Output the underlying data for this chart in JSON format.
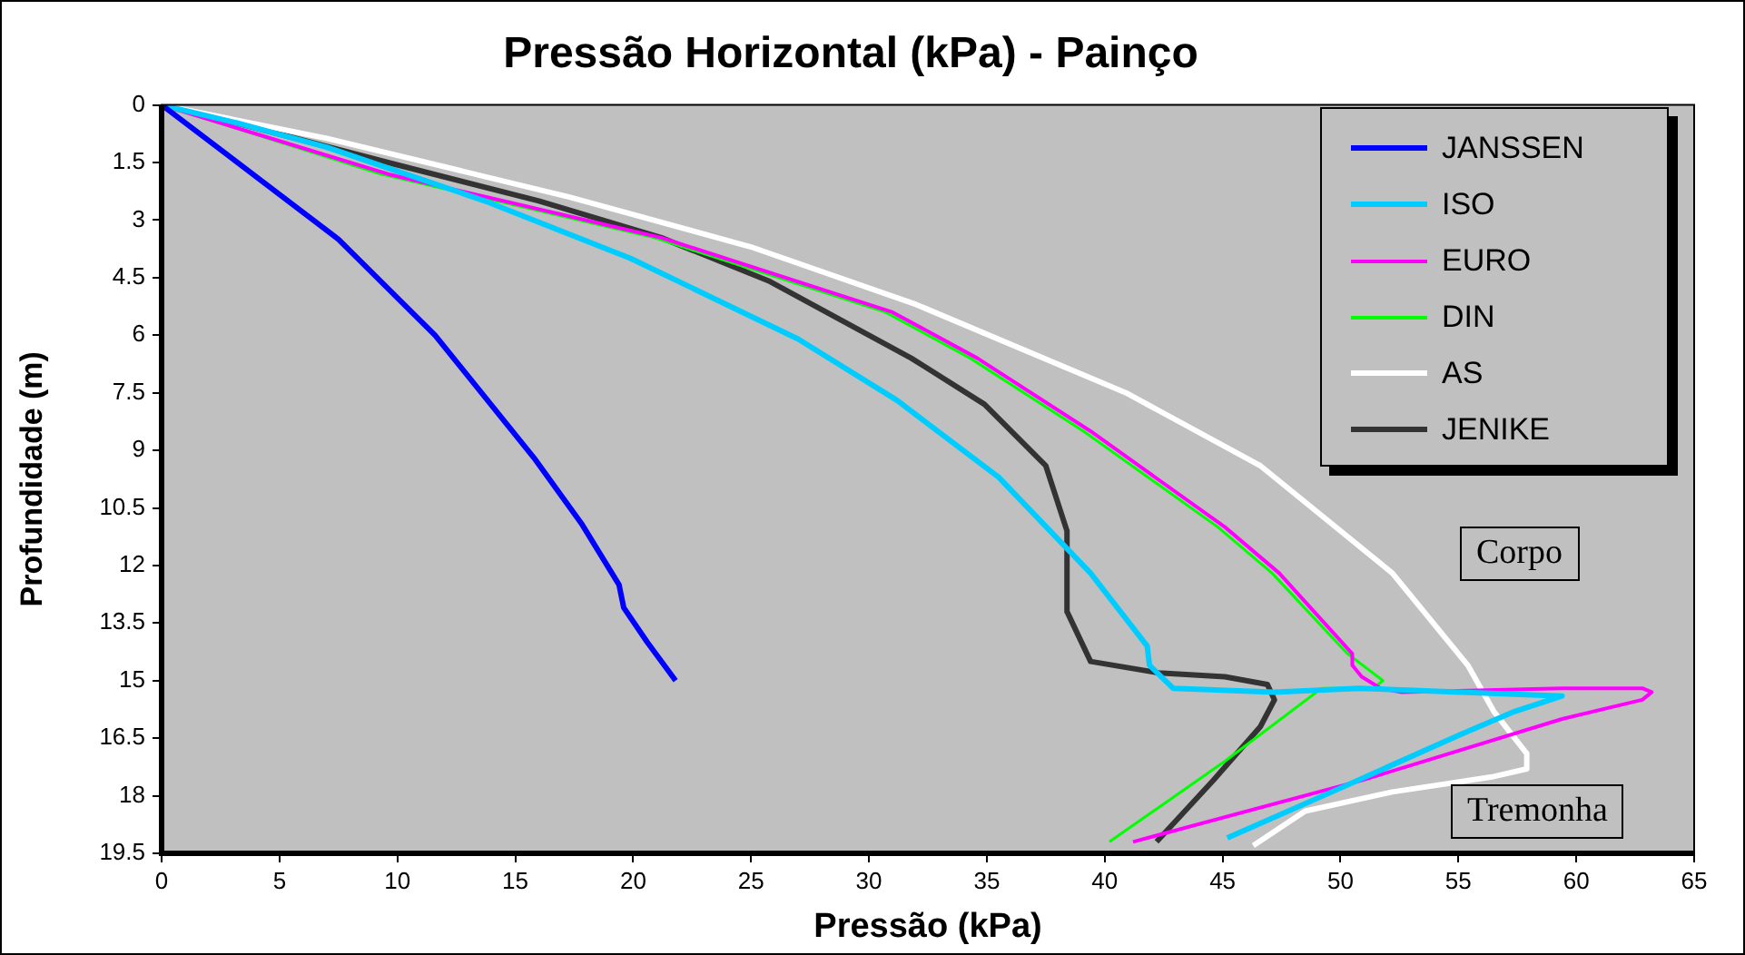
{
  "chart_data": {
    "type": "line",
    "title": "Pressão Horizontal (kPa) - Painço",
    "xlabel": "Pressão (kPa)",
    "ylabel": "Profundidade (m)",
    "xlim": [
      0,
      65
    ],
    "xticks": [
      0,
      5,
      10,
      15,
      20,
      25,
      30,
      35,
      40,
      45,
      50,
      55,
      60,
      65
    ],
    "ylim": [
      19.5,
      0
    ],
    "yticks": [
      0,
      1.5,
      3,
      4.5,
      6,
      7.5,
      9,
      10.5,
      12,
      13.5,
      15,
      16.5,
      18,
      19.5
    ],
    "legend": "top right",
    "marker": "none",
    "line_style": "solid",
    "annotations": [
      "Corpo",
      "Tremonha"
    ],
    "series": [
      {
        "name": "JANSSEN",
        "color": "#0000ff",
        "x": [
          0,
          4.4,
          7.5,
          11.6,
          15.8,
          17.8,
          19.4,
          19.6,
          20.6,
          21.8
        ],
        "values": [
          0,
          2.05,
          3.5,
          6.0,
          9.2,
          10.9,
          12.5,
          13.1,
          14.0,
          15.0
        ]
      },
      {
        "name": "ISO",
        "color": "#00ccff",
        "x": [
          0,
          3.2,
          7.0,
          13.7,
          19.9,
          27.0,
          31.2,
          35.5,
          39.4,
          41.8,
          41.9,
          42.9,
          47.2,
          50.8,
          59.4,
          57.4,
          55.1,
          50.0,
          45.2
        ],
        "values": [
          0,
          0.47,
          1.1,
          2.5,
          4.0,
          6.1,
          7.7,
          9.7,
          12.2,
          14.1,
          14.6,
          15.2,
          15.3,
          15.2,
          15.4,
          15.8,
          16.4,
          17.8,
          19.1
        ]
      },
      {
        "name": "EURO",
        "color": "#ff00ff",
        "x": [
          0,
          9.6,
          21.2,
          31.0,
          34.6,
          39.4,
          45.1,
          47.4,
          50.5,
          50.5,
          50.9,
          51.7,
          52.6,
          59.4,
          62.8,
          63.2,
          62.8,
          59.4,
          50.9,
          41.2
        ],
        "values": [
          0,
          1.8,
          3.46,
          5.4,
          6.6,
          8.5,
          11.0,
          12.2,
          14.3,
          14.6,
          14.9,
          15.2,
          15.3,
          15.2,
          15.2,
          15.3,
          15.5,
          16.0,
          17.6,
          19.2
        ]
      },
      {
        "name": "DIN",
        "color": "#00ff00",
        "x": [
          0,
          9.3,
          20.9,
          30.7,
          34.3,
          39.1,
          44.8,
          47.1,
          50.3,
          51.8,
          51.4,
          49.2,
          45.1,
          40.2
        ],
        "values": [
          0,
          1.8,
          3.46,
          5.4,
          6.6,
          8.5,
          11.0,
          12.2,
          14.3,
          15.0,
          15.2,
          15.2,
          17.1,
          19.2
        ]
      },
      {
        "name": "AS",
        "color": "#ffffff",
        "x": [
          0,
          7.0,
          17.3,
          25.0,
          32.0,
          40.9,
          46.6,
          52.2,
          55.4,
          56.5,
          57.9,
          57.9,
          56.5,
          52.2,
          48.5,
          46.3
        ],
        "values": [
          0,
          0.87,
          2.4,
          3.7,
          5.2,
          7.5,
          9.4,
          12.2,
          14.6,
          15.8,
          16.9,
          17.3,
          17.5,
          17.9,
          18.4,
          19.3
        ]
      },
      {
        "name": "JENIKE",
        "color": "#333333",
        "x": [
          0,
          3.2,
          9.6,
          16.0,
          21.2,
          25.8,
          31.8,
          34.9,
          37.5,
          38.4,
          38.4,
          39.4,
          42.3,
          45.1,
          46.9,
          47.2,
          46.6,
          44.6,
          42.2
        ],
        "values": [
          0,
          0.47,
          1.5,
          2.5,
          3.46,
          4.6,
          6.6,
          7.8,
          9.4,
          11.1,
          13.2,
          14.5,
          14.8,
          14.9,
          15.1,
          15.5,
          16.2,
          17.6,
          19.2
        ]
      }
    ]
  }
}
